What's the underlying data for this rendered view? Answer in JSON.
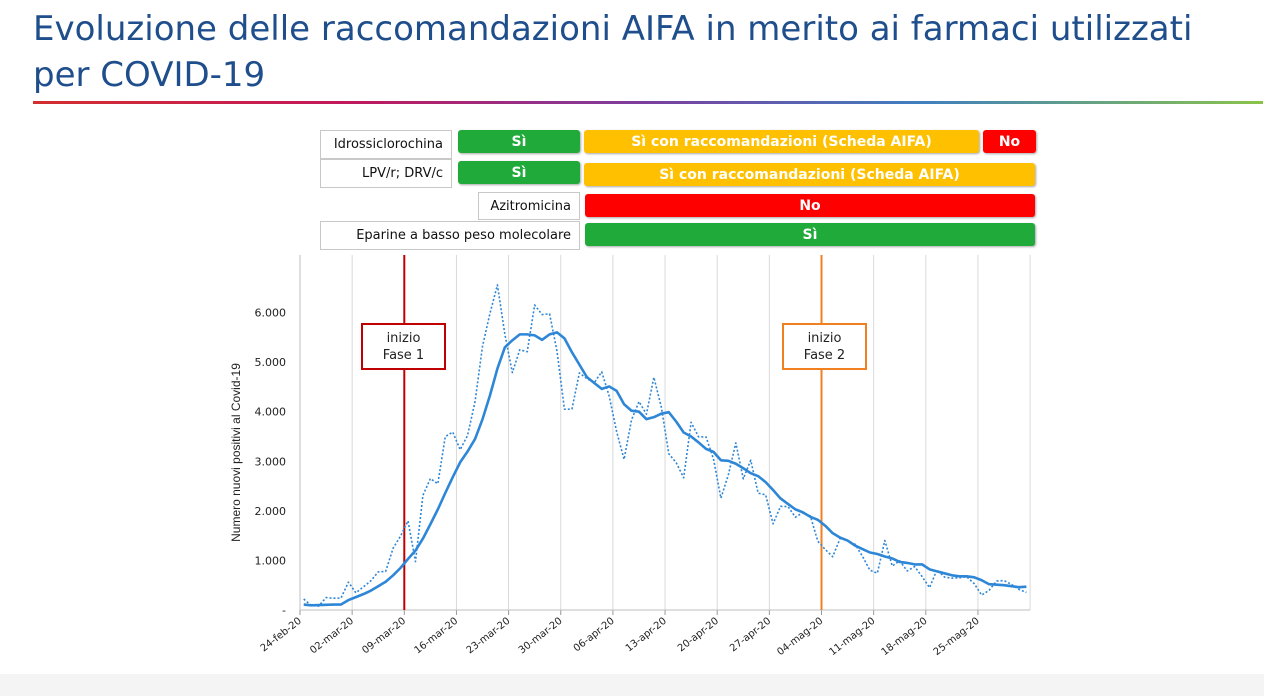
{
  "title": "Evoluzione delle raccomandazioni AIFA in merito ai farmaci utilizzati per COVID-19",
  "colors": {
    "title": "#1f4e8c",
    "green": "#1faa3a",
    "orange": "#ffc000",
    "red": "#ff0000",
    "line": "#2e86d6",
    "phase1": "#c00000",
    "phase2": "#f08020"
  },
  "recommendations": [
    {
      "drug": "Idrossiclorochina",
      "bars": [
        {
          "label": "Sì",
          "color": "green"
        },
        {
          "label": "Sì con raccomandazioni (Scheda AIFA)",
          "color": "orange"
        },
        {
          "label": "No",
          "color": "red"
        }
      ]
    },
    {
      "drug": "LPV/r; DRV/c",
      "bars": [
        {
          "label": "Sì",
          "color": "green"
        },
        {
          "label": "Sì con raccomandazioni (Scheda AIFA)",
          "color": "orange"
        }
      ]
    },
    {
      "drug": "Azitromicina",
      "bars": [
        {
          "label": "No",
          "color": "red"
        }
      ]
    },
    {
      "drug": "Eparine a basso peso molecolare",
      "bars": [
        {
          "label": "Sì",
          "color": "green"
        }
      ]
    }
  ],
  "phases": {
    "phase1": {
      "line1": "inizio",
      "line2": "Fase 1",
      "date": "09-mar-20"
    },
    "phase2": {
      "line1": "inizio",
      "line2": "Fase 2",
      "date": "04-mag-20"
    }
  },
  "chart_data": {
    "type": "line",
    "title": "",
    "xlabel": "",
    "ylabel": "Numero nuovi positivi al Covid-19",
    "ylim": [
      0,
      7000
    ],
    "yticks": [
      0,
      1000,
      2000,
      3000,
      4000,
      5000,
      6000
    ],
    "ytick_labels": [
      "-",
      "1.000",
      "2.000",
      "3.000",
      "4.000",
      "5.000",
      "6.000"
    ],
    "xtick_labels": [
      "24-feb-20",
      "02-mar-20",
      "09-mar-20",
      "16-mar-20",
      "23-mar-20",
      "30-mar-20",
      "06-apr-20",
      "13-apr-20",
      "20-apr-20",
      "27-apr-20",
      "04-mag-20",
      "11-mag-20",
      "18-mag-20",
      "25-mag-20"
    ],
    "x_start": "24-feb-20",
    "grid": "vertical",
    "series": [
      {
        "style": "dotted",
        "values": [
          221,
          93,
          78,
          250,
          238,
          240,
          561,
          347,
          466,
          587,
          769,
          778,
          1247,
          1492,
          1797,
          977,
          2313,
          2651,
          2547,
          3497,
          3590,
          3233,
          3526,
          4207,
          5322,
          5986,
          6557,
          5560,
          4789,
          5249,
          5210,
          6153,
          5959,
          5974,
          5217,
          4050,
          4053,
          4782,
          4668,
          4585,
          4805,
          4316,
          3599,
          3039,
          3836,
          4204,
          3951,
          4694,
          4092,
          3153,
          2972,
          2667,
          3786,
          3493,
          3491,
          3047,
          2256,
          2729,
          3370,
          2646,
          3021,
          2357,
          2324,
          1739,
          2091,
          2086,
          1872,
          1965,
          1900,
          1389,
          1221,
          1075,
          1444,
          1401,
          1327,
          1083,
          802,
          744,
          1402,
          888,
          992,
          789,
          875,
          675,
          451,
          813,
          665,
          642,
          652,
          669,
          531,
          300,
          397,
          584,
          593,
          516,
          416,
          355
        ]
      },
      {
        "style": "solid",
        "values": [
          110,
          95,
          100,
          105,
          110,
          110,
          200,
          260,
          320,
          390,
          480,
          570,
          700,
          850,
          1030,
          1200,
          1440,
          1730,
          2030,
          2360,
          2680,
          2980,
          3200,
          3450,
          3850,
          4330,
          4870,
          5300,
          5440,
          5560,
          5560,
          5540,
          5450,
          5560,
          5600,
          5480,
          5200,
          4950,
          4700,
          4580,
          4460,
          4510,
          4420,
          4150,
          4020,
          4000,
          3850,
          3890,
          3960,
          3990,
          3800,
          3580,
          3500,
          3380,
          3250,
          3190,
          3020,
          3010,
          2950,
          2860,
          2760,
          2700,
          2580,
          2420,
          2250,
          2140,
          2030,
          1970,
          1880,
          1820,
          1700,
          1550,
          1460,
          1400,
          1300,
          1230,
          1160,
          1130,
          1080,
          1040,
          970,
          950,
          920,
          920,
          820,
          780,
          740,
          700,
          680,
          680,
          660,
          600,
          520,
          510,
          500,
          480,
          460,
          470
        ]
      }
    ]
  }
}
